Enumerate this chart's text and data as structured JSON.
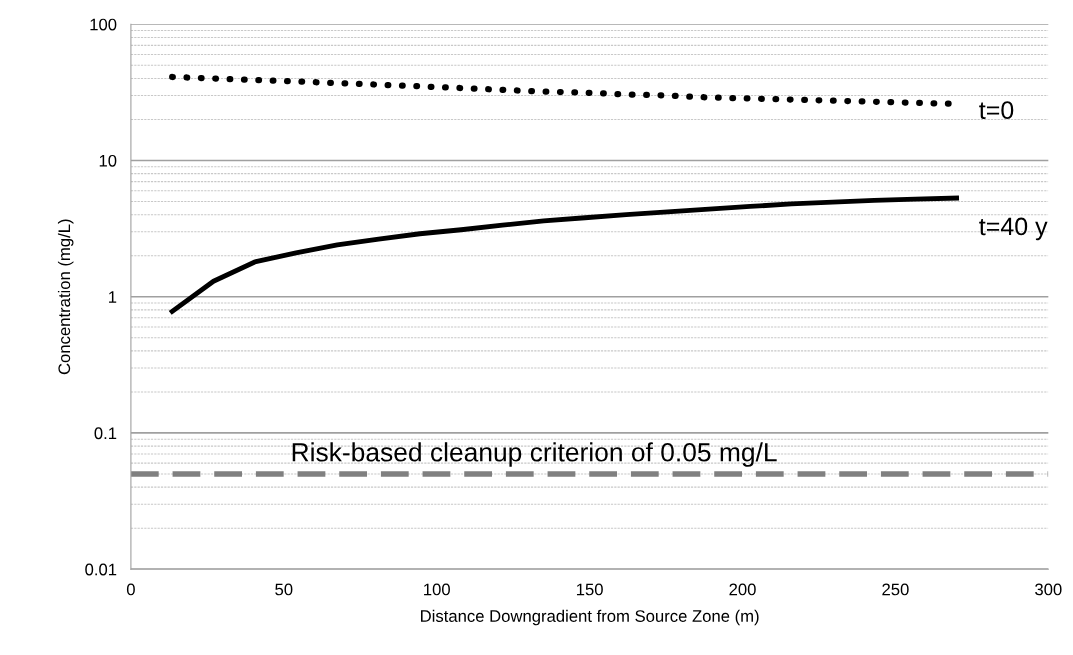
{
  "chart_data": {
    "type": "line",
    "xlabel": "Distance Downgradient from Source Zone (m)",
    "ylabel": "Concentration (mg/L)",
    "log": true,
    "grid": true,
    "xlim": [
      0,
      300
    ],
    "xticks": [
      0,
      50,
      100,
      150,
      200,
      250,
      300
    ],
    "ylim": [
      0.01,
      100
    ],
    "yticks": [
      {
        "value": 0.01,
        "label": "0.01"
      },
      {
        "value": 0.1,
        "label": "0.1"
      },
      {
        "value": 1,
        "label": "1"
      },
      {
        "value": 10,
        "label": "10"
      },
      {
        "value": 100,
        "label": "100"
      }
    ],
    "x": [
      13.5,
      27,
      40.5,
      54,
      67.5,
      81,
      94.5,
      108,
      121.5,
      135,
      148.5,
      162,
      175.5,
      189,
      202.5,
      216,
      229.5,
      243,
      256.5,
      270
    ],
    "series": [
      {
        "name": "t=0",
        "color": "#000000",
        "line_style": "dotted",
        "values": [
          41,
          40,
          39,
          38,
          37,
          36,
          35,
          34,
          33,
          32,
          31.5,
          30.5,
          30,
          29,
          28.5,
          28,
          27.5,
          27,
          26.5,
          26
        ]
      },
      {
        "name": "t=40 y",
        "color": "#000000",
        "line_style": "solid",
        "values": [
          0.78,
          1.3,
          1.8,
          2.1,
          2.4,
          2.65,
          2.9,
          3.1,
          3.35,
          3.6,
          3.8,
          4.0,
          4.2,
          4.4,
          4.6,
          4.8,
          4.95,
          5.1,
          5.2,
          5.3
        ]
      }
    ],
    "ref_lines": [
      {
        "axis": "y",
        "value": 0.05,
        "label": "Risk-based cleanup criterion of 0.05 mg/L",
        "color": "#808080",
        "line_style": "dashed"
      }
    ]
  }
}
